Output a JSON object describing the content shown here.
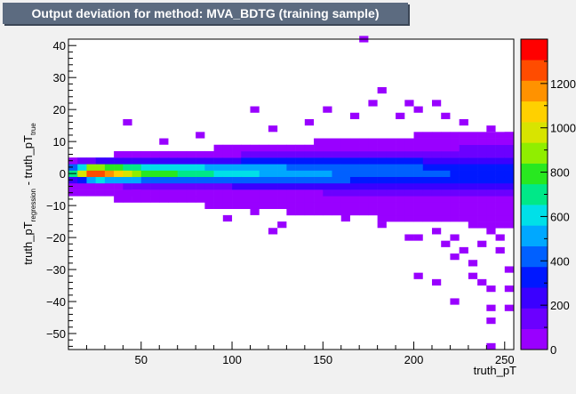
{
  "chart_data": {
    "type": "heatmap",
    "title": "Output deviation for method: MVA_BDTG (training sample)",
    "xlabel": "truth_pT",
    "ylabel": {
      "main": "truth_pT",
      "sub1": "regression",
      "mid": " - truth_pT",
      "sub2": "true"
    },
    "x_range": [
      10,
      255
    ],
    "y_range": [
      -55,
      42
    ],
    "x_ticks": [
      "50",
      "100",
      "150",
      "200",
      "250"
    ],
    "y_ticks": [
      "−50",
      "−40",
      "−30",
      "−20",
      "−10",
      "0",
      "10",
      "20",
      "30",
      "40"
    ],
    "z_range": [
      0,
      1400
    ],
    "z_ticks": [
      "0",
      "200",
      "400",
      "600",
      "800",
      "1000",
      "1200"
    ],
    "bins": {
      "x_width": 5,
      "y_width": 2
    },
    "palette": [
      "#9900ff",
      "#6b00ff",
      "#3a00ff",
      "#0018ff",
      "#0060ff",
      "#00a8ff",
      "#00e0e8",
      "#00e888",
      "#28e820",
      "#90ee00",
      "#d8e400",
      "#ffd000",
      "#ff9200",
      "#ff4c00",
      "#ff0000"
    ],
    "core_profile": {
      "x": [
        15,
        20,
        25,
        30,
        40,
        50,
        70,
        90,
        110,
        130,
        150,
        170,
        190,
        210,
        230,
        250
      ],
      "peak_counts": [
        700,
        1250,
        1380,
        1250,
        1000,
        850,
        750,
        650,
        580,
        530,
        480,
        450,
        420,
        390,
        360,
        330
      ]
    },
    "outliers": [
      {
        "x": 172,
        "y": 41
      },
      {
        "x": 182,
        "y": 25
      },
      {
        "x": 197,
        "y": 21
      },
      {
        "x": 212,
        "y": 21
      },
      {
        "x": 112,
        "y": 19
      },
      {
        "x": 152,
        "y": 19
      },
      {
        "x": 177,
        "y": 21
      },
      {
        "x": 167,
        "y": 17
      },
      {
        "x": 42,
        "y": 15
      },
      {
        "x": 192,
        "y": 17
      },
      {
        "x": 202,
        "y": 19
      },
      {
        "x": 217,
        "y": 17
      },
      {
        "x": 227,
        "y": 15
      },
      {
        "x": 242,
        "y": 13
      },
      {
        "x": 62,
        "y": 9
      },
      {
        "x": 82,
        "y": 11
      },
      {
        "x": 122,
        "y": 13
      },
      {
        "x": 142,
        "y": 15
      },
      {
        "x": 252,
        "y": 11
      },
      {
        "x": 47,
        "y": -7
      },
      {
        "x": 62,
        "y": -9
      },
      {
        "x": 77,
        "y": -9
      },
      {
        "x": 112,
        "y": -13
      },
      {
        "x": 97,
        "y": -15
      },
      {
        "x": 127,
        "y": -17
      },
      {
        "x": 162,
        "y": -15
      },
      {
        "x": 182,
        "y": -17
      },
      {
        "x": 202,
        "y": -21
      },
      {
        "x": 212,
        "y": -19
      },
      {
        "x": 122,
        "y": -19
      },
      {
        "x": 232,
        "y": -17
      },
      {
        "x": 222,
        "y": -21
      },
      {
        "x": 242,
        "y": -19
      },
      {
        "x": 197,
        "y": -21
      },
      {
        "x": 217,
        "y": -23
      },
      {
        "x": 227,
        "y": -25
      },
      {
        "x": 237,
        "y": -23
      },
      {
        "x": 247,
        "y": -21
      },
      {
        "x": 222,
        "y": -27
      },
      {
        "x": 232,
        "y": -29
      },
      {
        "x": 247,
        "y": -25
      },
      {
        "x": 232,
        "y": -33
      },
      {
        "x": 252,
        "y": -31
      },
      {
        "x": 202,
        "y": -33
      },
      {
        "x": 212,
        "y": -35
      },
      {
        "x": 242,
        "y": -37
      },
      {
        "x": 237,
        "y": -35
      },
      {
        "x": 252,
        "y": -37
      },
      {
        "x": 222,
        "y": -41
      },
      {
        "x": 252,
        "y": -43
      },
      {
        "x": 242,
        "y": -43
      },
      {
        "x": 242,
        "y": -47
      },
      {
        "x": 242,
        "y": -55
      }
    ]
  }
}
